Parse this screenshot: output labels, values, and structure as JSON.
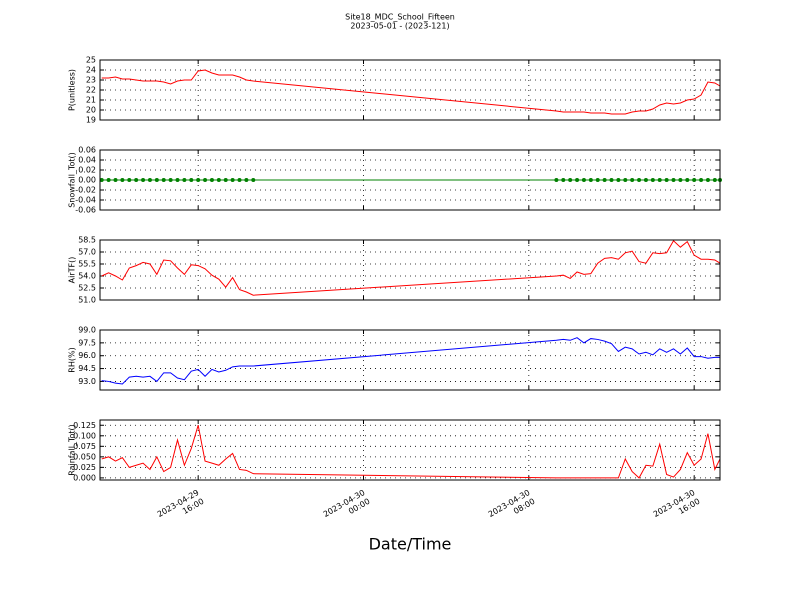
{
  "chart_data": [
    {
      "type": "line",
      "title": "Site18_MDC_School_Fifteen",
      "subtitle": "2023-05-01 - (2023-121)",
      "ylabel": "P(unitless)",
      "color": "#ff0000",
      "grid": true,
      "xlim": [
        "2023-04-29 11:15",
        "2023-04-30 17:15"
      ],
      "ylim": [
        19,
        25
      ],
      "yticks": [
        19,
        20,
        21,
        22,
        23,
        24,
        25
      ],
      "x": [
        "2023-04-29 11:20",
        "2023-04-29 11:40",
        "2023-04-29 12:00",
        "2023-04-29 12:20",
        "2023-04-29 12:40",
        "2023-04-29 13:00",
        "2023-04-29 13:20",
        "2023-04-29 13:40",
        "2023-04-29 14:00",
        "2023-04-29 14:20",
        "2023-04-29 14:40",
        "2023-04-29 15:00",
        "2023-04-29 15:20",
        "2023-04-29 15:40",
        "2023-04-29 16:00",
        "2023-04-29 16:20",
        "2023-04-29 16:40",
        "2023-04-29 17:00",
        "2023-04-29 17:20",
        "2023-04-29 17:40",
        "2023-04-29 18:00",
        "2023-04-29 18:20",
        "2023-04-29 18:40",
        "2023-04-30 09:20",
        "2023-04-30 09:40",
        "2023-04-30 10:00",
        "2023-04-30 10:20",
        "2023-04-30 10:40",
        "2023-04-30 11:00",
        "2023-04-30 11:20",
        "2023-04-30 11:40",
        "2023-04-30 12:00",
        "2023-04-30 12:20",
        "2023-04-30 12:40",
        "2023-04-30 13:00",
        "2023-04-30 13:20",
        "2023-04-30 13:40",
        "2023-04-30 14:00",
        "2023-04-30 14:20",
        "2023-04-30 14:40",
        "2023-04-30 15:00",
        "2023-04-30 15:20",
        "2023-04-30 15:40",
        "2023-04-30 16:00",
        "2023-04-30 16:20",
        "2023-04-30 16:40",
        "2023-04-30 17:00",
        "2023-04-30 17:15"
      ],
      "values": [
        23.2,
        23.2,
        23.3,
        23.1,
        23.1,
        23.0,
        22.9,
        22.9,
        22.9,
        22.8,
        22.6,
        22.9,
        23.0,
        23.0,
        23.9,
        24.0,
        23.7,
        23.5,
        23.5,
        23.5,
        23.3,
        23.0,
        22.9,
        19.9,
        19.8,
        19.8,
        19.8,
        19.8,
        19.7,
        19.7,
        19.7,
        19.6,
        19.6,
        19.6,
        19.8,
        19.9,
        19.9,
        20.1,
        20.5,
        20.7,
        20.6,
        20.7,
        21.0,
        21.1,
        21.5,
        22.8,
        22.7,
        22.4
      ]
    },
    {
      "type": "line",
      "ylabel": "Snowfall_Tot()",
      "color": "#008000",
      "markers": true,
      "grid": true,
      "xlim": [
        "2023-04-29 11:15",
        "2023-04-30 17:15"
      ],
      "ylim": [
        -0.06,
        0.06
      ],
      "yticks": [
        -0.06,
        -0.04,
        -0.02,
        {
          "value": 0,
          "label": "0.00"
        },
        0.02,
        0.04,
        0.06
      ],
      "x": [
        "2023-04-29 11:20",
        "2023-04-29 11:40",
        "2023-04-29 12:00",
        "2023-04-29 12:20",
        "2023-04-29 12:40",
        "2023-04-29 13:00",
        "2023-04-29 13:20",
        "2023-04-29 13:40",
        "2023-04-29 14:00",
        "2023-04-29 14:20",
        "2023-04-29 14:40",
        "2023-04-29 15:00",
        "2023-04-29 15:20",
        "2023-04-29 15:40",
        "2023-04-29 16:00",
        "2023-04-29 16:20",
        "2023-04-29 16:40",
        "2023-04-29 17:00",
        "2023-04-29 17:20",
        "2023-04-29 17:40",
        "2023-04-29 18:00",
        "2023-04-29 18:20",
        "2023-04-29 18:40",
        "2023-04-30 09:20",
        "2023-04-30 09:40",
        "2023-04-30 10:00",
        "2023-04-30 10:20",
        "2023-04-30 10:40",
        "2023-04-30 11:00",
        "2023-04-30 11:20",
        "2023-04-30 11:40",
        "2023-04-30 12:00",
        "2023-04-30 12:20",
        "2023-04-30 12:40",
        "2023-04-30 13:00",
        "2023-04-30 13:20",
        "2023-04-30 13:40",
        "2023-04-30 14:00",
        "2023-04-30 14:20",
        "2023-04-30 14:40",
        "2023-04-30 15:00",
        "2023-04-30 15:20",
        "2023-04-30 15:40",
        "2023-04-30 16:00",
        "2023-04-30 16:20",
        "2023-04-30 16:40",
        "2023-04-30 17:00",
        "2023-04-30 17:15"
      ],
      "values": [
        0,
        0,
        0,
        0,
        0,
        0,
        0,
        0,
        0,
        0,
        0,
        0,
        0,
        0,
        0,
        0,
        0,
        0,
        0,
        0,
        0,
        0,
        0,
        0,
        0,
        0,
        0,
        0,
        0,
        0,
        0,
        0,
        0,
        0,
        0,
        0,
        0,
        0,
        0,
        0,
        0,
        0,
        0,
        0,
        0,
        0,
        0,
        0
      ]
    },
    {
      "type": "line",
      "ylabel": "AirTF()",
      "color": "#ff0000",
      "grid": true,
      "xlim": [
        "2023-04-29 11:15",
        "2023-04-30 17:15"
      ],
      "ylim": [
        51,
        58.5
      ],
      "yticks": [
        {
          "value": 51,
          "label": "51.0"
        },
        52.5,
        {
          "value": 54,
          "label": "54.0"
        },
        55.5,
        {
          "value": 57,
          "label": "57.0"
        },
        58.5
      ],
      "x": [
        "2023-04-29 11:20",
        "2023-04-29 11:40",
        "2023-04-29 12:00",
        "2023-04-29 12:20",
        "2023-04-29 12:40",
        "2023-04-29 13:00",
        "2023-04-29 13:20",
        "2023-04-29 13:40",
        "2023-04-29 14:00",
        "2023-04-29 14:20",
        "2023-04-29 14:40",
        "2023-04-29 15:00",
        "2023-04-29 15:20",
        "2023-04-29 15:40",
        "2023-04-29 16:00",
        "2023-04-29 16:20",
        "2023-04-29 16:40",
        "2023-04-29 17:00",
        "2023-04-29 17:20",
        "2023-04-29 17:40",
        "2023-04-29 18:00",
        "2023-04-29 18:20",
        "2023-04-29 18:40",
        "2023-04-30 09:20",
        "2023-04-30 09:40",
        "2023-04-30 10:00",
        "2023-04-30 10:20",
        "2023-04-30 10:40",
        "2023-04-30 11:00",
        "2023-04-30 11:20",
        "2023-04-30 11:40",
        "2023-04-30 12:00",
        "2023-04-30 12:20",
        "2023-04-30 12:40",
        "2023-04-30 13:00",
        "2023-04-30 13:20",
        "2023-04-30 13:40",
        "2023-04-30 14:00",
        "2023-04-30 14:20",
        "2023-04-30 14:40",
        "2023-04-30 15:00",
        "2023-04-30 15:20",
        "2023-04-30 15:40",
        "2023-04-30 16:00",
        "2023-04-30 16:20",
        "2023-04-30 16:40",
        "2023-04-30 17:00",
        "2023-04-30 17:15"
      ],
      "values": [
        54.0,
        54.4,
        54.0,
        53.5,
        55.0,
        55.3,
        55.7,
        55.5,
        54.2,
        56.0,
        55.9,
        55.0,
        54.2,
        55.4,
        55.3,
        54.9,
        54.1,
        53.6,
        52.6,
        53.8,
        52.3,
        52.0,
        51.6,
        54.0,
        54.1,
        53.7,
        54.5,
        54.2,
        54.3,
        55.6,
        56.2,
        56.3,
        56.1,
        56.9,
        57.1,
        55.8,
        55.6,
        56.9,
        56.8,
        56.9,
        58.4,
        57.6,
        58.3,
        56.6,
        56.1,
        56.1,
        56.0,
        55.6
      ]
    },
    {
      "type": "line",
      "ylabel": "RH(%)",
      "color": "#0000ff",
      "grid": true,
      "xlim": [
        "2023-04-29 11:15",
        "2023-04-30 17:15"
      ],
      "ylim": [
        92,
        99
      ],
      "yticks": [
        {
          "value": 93,
          "label": "93.0"
        },
        94.5,
        {
          "value": 96,
          "label": "96.0"
        },
        97.5,
        {
          "value": 99,
          "label": "99.0"
        }
      ],
      "x": [
        "2023-04-29 11:20",
        "2023-04-29 11:40",
        "2023-04-29 12:00",
        "2023-04-29 12:20",
        "2023-04-29 12:40",
        "2023-04-29 13:00",
        "2023-04-29 13:20",
        "2023-04-29 13:40",
        "2023-04-29 14:00",
        "2023-04-29 14:20",
        "2023-04-29 14:40",
        "2023-04-29 15:00",
        "2023-04-29 15:20",
        "2023-04-29 15:40",
        "2023-04-29 16:00",
        "2023-04-29 16:20",
        "2023-04-29 16:40",
        "2023-04-29 17:00",
        "2023-04-29 17:20",
        "2023-04-29 17:40",
        "2023-04-29 18:00",
        "2023-04-29 18:20",
        "2023-04-29 18:40",
        "2023-04-30 09:20",
        "2023-04-30 09:40",
        "2023-04-30 10:00",
        "2023-04-30 10:20",
        "2023-04-30 10:40",
        "2023-04-30 11:00",
        "2023-04-30 11:20",
        "2023-04-30 11:40",
        "2023-04-30 12:00",
        "2023-04-30 12:20",
        "2023-04-30 12:40",
        "2023-04-30 13:00",
        "2023-04-30 13:20",
        "2023-04-30 13:40",
        "2023-04-30 14:00",
        "2023-04-30 14:20",
        "2023-04-30 14:40",
        "2023-04-30 15:00",
        "2023-04-30 15:20",
        "2023-04-30 15:40",
        "2023-04-30 16:00",
        "2023-04-30 16:20",
        "2023-04-30 16:40",
        "2023-04-30 17:00",
        "2023-04-30 17:15"
      ],
      "values": [
        93.1,
        93.0,
        92.8,
        92.7,
        93.5,
        93.6,
        93.5,
        93.6,
        93.0,
        94.0,
        94.0,
        93.4,
        93.2,
        94.2,
        94.4,
        93.6,
        94.4,
        94.1,
        94.3,
        94.7,
        94.8,
        94.8,
        94.8,
        97.8,
        97.9,
        97.8,
        98.1,
        97.5,
        98.0,
        97.9,
        97.7,
        97.4,
        96.5,
        97.0,
        96.8,
        96.2,
        96.4,
        96.1,
        96.8,
        96.4,
        96.8,
        96.2,
        96.9,
        95.9,
        95.9,
        95.7,
        95.8,
        95.8
      ]
    },
    {
      "type": "line",
      "ylabel": "Rainfall_Tot()",
      "xlabel": "Date/Time",
      "color": "#ff0000",
      "grid": true,
      "xlim": [
        "2023-04-29 11:15",
        "2023-04-30 17:15"
      ],
      "xticks": [
        "2023-04-29 16:00",
        "2023-04-30 00:00",
        "2023-04-30 08:00",
        "2023-04-30 16:00"
      ],
      "ylim": [
        -0.005,
        0.1375
      ],
      "yticks": [
        {
          "value": 0,
          "label": "0.000"
        },
        0.025,
        {
          "value": 0.05,
          "label": "0.050"
        },
        0.075,
        {
          "value": 0.1,
          "label": "0.100"
        },
        0.125
      ],
      "x": [
        "2023-04-29 11:20",
        "2023-04-29 11:40",
        "2023-04-29 12:00",
        "2023-04-29 12:20",
        "2023-04-29 12:40",
        "2023-04-29 13:00",
        "2023-04-29 13:20",
        "2023-04-29 13:40",
        "2023-04-29 14:00",
        "2023-04-29 14:20",
        "2023-04-29 14:40",
        "2023-04-29 15:00",
        "2023-04-29 15:20",
        "2023-04-29 15:40",
        "2023-04-29 16:00",
        "2023-04-29 16:20",
        "2023-04-29 16:40",
        "2023-04-29 17:00",
        "2023-04-29 17:20",
        "2023-04-29 17:40",
        "2023-04-29 18:00",
        "2023-04-29 18:20",
        "2023-04-29 18:40",
        "2023-04-30 09:20",
        "2023-04-30 09:40",
        "2023-04-30 10:00",
        "2023-04-30 10:20",
        "2023-04-30 10:40",
        "2023-04-30 11:00",
        "2023-04-30 11:20",
        "2023-04-30 11:40",
        "2023-04-30 12:00",
        "2023-04-30 12:20",
        "2023-04-30 12:40",
        "2023-04-30 13:00",
        "2023-04-30 13:20",
        "2023-04-30 13:40",
        "2023-04-30 14:00",
        "2023-04-30 14:20",
        "2023-04-30 14:40",
        "2023-04-30 15:00",
        "2023-04-30 15:20",
        "2023-04-30 15:40",
        "2023-04-30 16:00",
        "2023-04-30 16:20",
        "2023-04-30 16:40",
        "2023-04-30 17:00",
        "2023-04-30 17:15"
      ],
      "values": [
        0.045,
        0.05,
        0.04,
        0.048,
        0.025,
        0.03,
        0.035,
        0.02,
        0.05,
        0.015,
        0.025,
        0.09,
        0.03,
        0.07,
        0.125,
        0.04,
        0.035,
        0.03,
        0.045,
        0.058,
        0.02,
        0.018,
        0.01,
        0,
        0,
        0,
        0,
        0,
        0,
        0,
        0,
        0,
        0,
        0.045,
        0.015,
        0,
        0.03,
        0.028,
        0.08,
        0.008,
        0.002,
        0.02,
        0.06,
        0.03,
        0.045,
        0.105,
        0.02,
        0.045
      ]
    }
  ]
}
